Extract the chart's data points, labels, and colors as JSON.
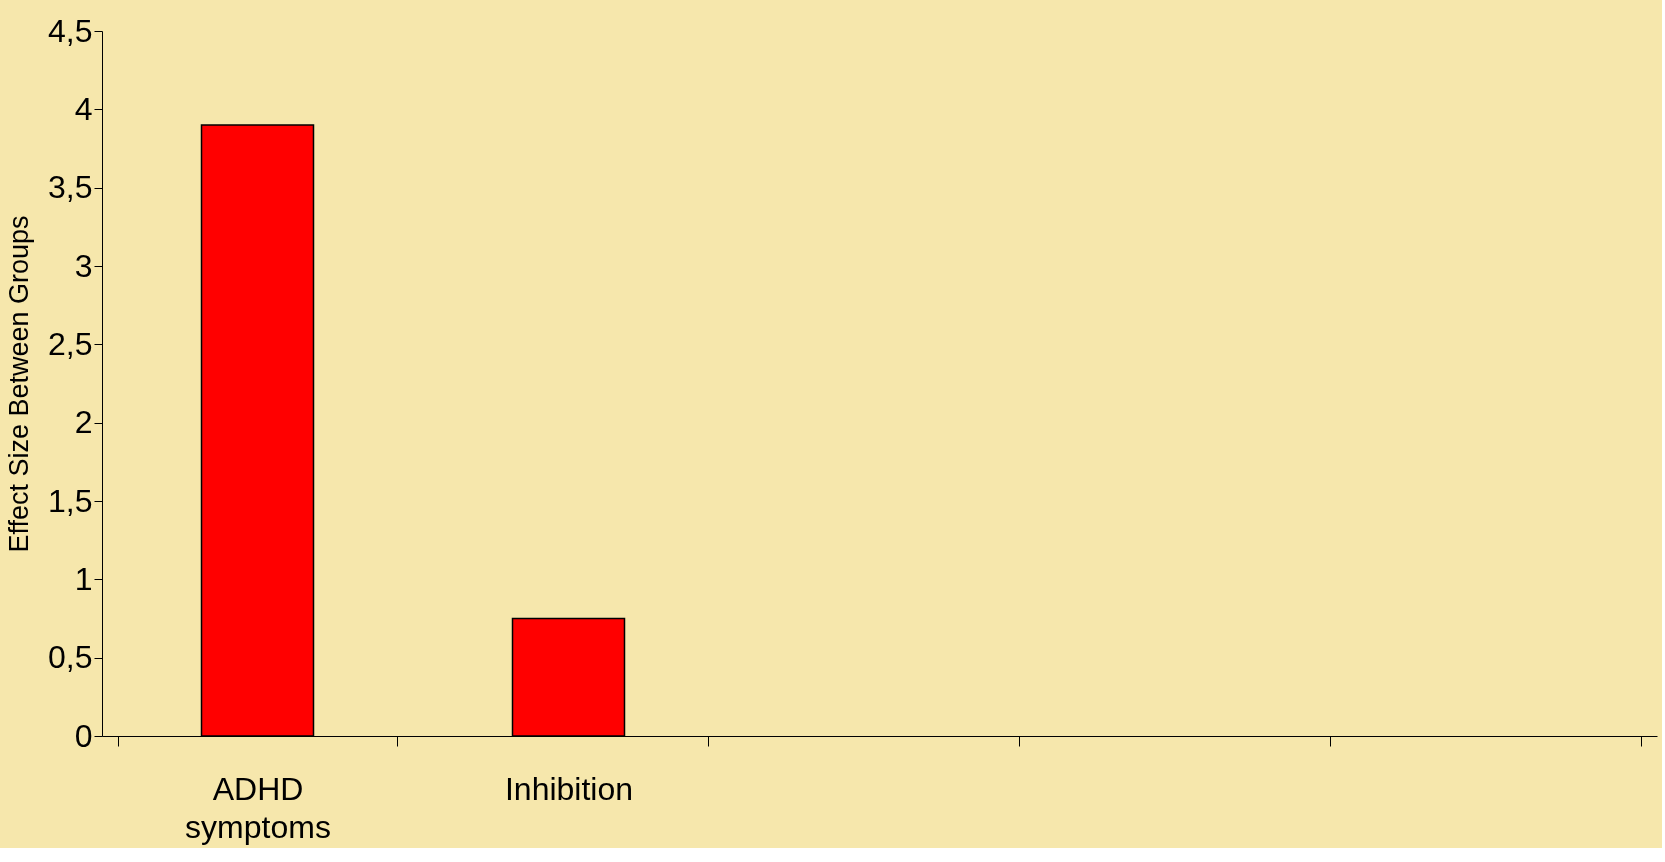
{
  "chart_data": {
    "type": "bar",
    "ylabel": "Effect Size Between Groups",
    "categories": [
      "ADHD symptoms",
      "Inhibition",
      null,
      null,
      null
    ],
    "values": [
      3.9,
      0.75,
      null,
      null,
      null
    ],
    "color": "#ff0000",
    "ylim": [
      0,
      4.5
    ],
    "yticks": [
      0,
      {
        "value": 0.5,
        "label": "0,5"
      },
      1,
      {
        "value": 1.5,
        "label": "1,5"
      },
      2,
      {
        "value": 2.5,
        "label": "2,5"
      },
      3,
      {
        "value": 3.5,
        "label": "3,5"
      },
      4,
      {
        "value": 4.5,
        "label": "4,5"
      }
    ],
    "grid": false
  }
}
